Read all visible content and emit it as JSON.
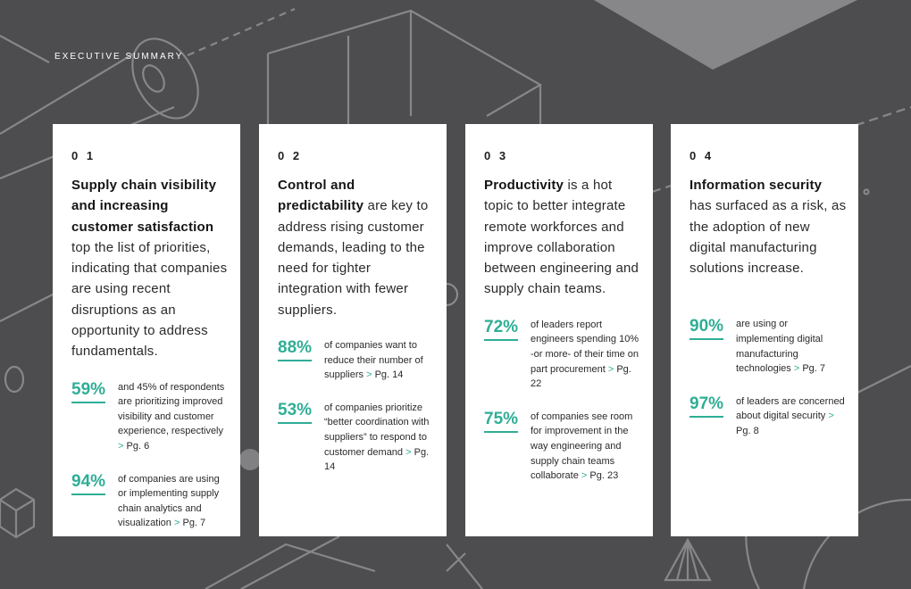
{
  "header": {
    "section_label": "EXECUTIVE SUMMARY"
  },
  "colors": {
    "accent": "#2fae96",
    "background": "#4d4d4f",
    "card": "#ffffff"
  },
  "cards": [
    {
      "number": "0 1",
      "bold": "Supply chain visibility and increasing customer satisfaction",
      "text": " top the list of priorities, indicating that companies are using recent disruptions as an opportunity to address fundamentals.",
      "stats": [
        {
          "value": "59%",
          "desc": "and 45% of respondents are prioritizing improved visibility and customer experience, respectively",
          "ref": "Pg. 6"
        },
        {
          "value": "94%",
          "desc": "of companies are using or implementing supply chain analytics and visualization",
          "ref": "Pg. 7"
        }
      ]
    },
    {
      "number": "0 2",
      "bold": "Control and predictability",
      "text": " are key to address rising customer demands, leading to the need for tighter integration with fewer suppliers.",
      "stats": [
        {
          "value": "88%",
          "desc": "of companies want to reduce their number of suppliers",
          "ref": "Pg. 14"
        },
        {
          "value": "53%",
          "desc": "of companies prioritize “better coordination with suppliers” to respond to customer demand",
          "ref": "Pg. 14"
        }
      ]
    },
    {
      "number": "0 3",
      "bold": "Productivity",
      "text": " is a hot topic to better integrate remote workforces and improve collaboration between engineering and supply chain teams.",
      "stats": [
        {
          "value": "72%",
          "desc": "of leaders report engineers spending 10% -or more- of their time on part procurement",
          "ref": "Pg. 22"
        },
        {
          "value": "75%",
          "desc": "of companies see room for improvement in the way engineering and supply chain teams collaborate",
          "ref": "Pg. 23"
        }
      ]
    },
    {
      "number": "0 4",
      "bold": "Information security",
      "text": " has surfaced as a risk, as the adoption of new digital manufacturing solutions increase.",
      "stats": [
        {
          "value": "90%",
          "desc": "are using or implementing digital manufacturing technologies",
          "ref": "Pg. 7"
        },
        {
          "value": "97%",
          "desc": "of leaders are concerned about digital security",
          "ref": "Pg. 8"
        }
      ]
    }
  ],
  "arrow_glyph": ">"
}
